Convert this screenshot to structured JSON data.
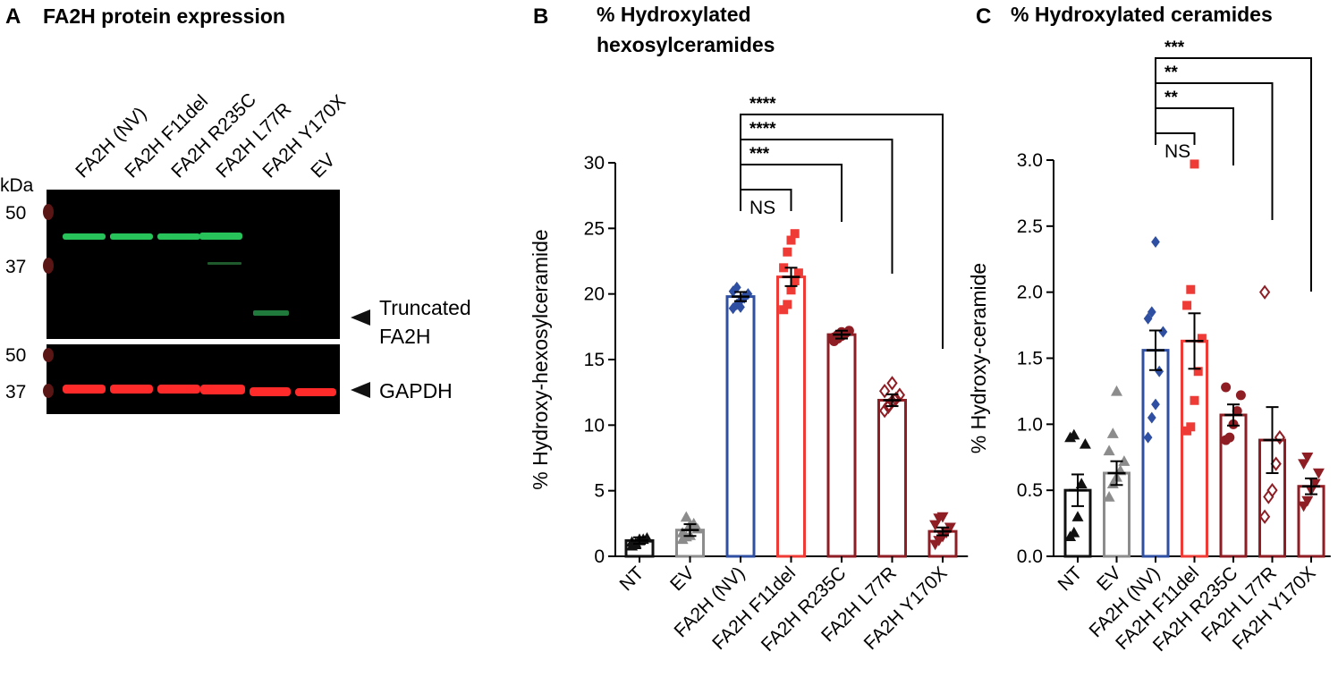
{
  "colors": {
    "NT": "#111111",
    "EV": "#8c8c8c",
    "FA2H (NV)": "#2f4fa2",
    "FA2H F11del": "#ef3b36",
    "FA2H R235C": "#8e1d24",
    "FA2H L77R": "#8e1d24",
    "FA2H Y170X": "#8e1d24",
    "blot_green": "#27c25a",
    "blot_red": "#ff2a2a",
    "ladder": "#6a1a1a"
  },
  "panel_a": {
    "letter": "A",
    "title": "FA2H protein expression",
    "kda_label": "kDa",
    "lanes": [
      "FA2H (NV)",
      "FA2H F11del",
      "FA2H R235C",
      "FA2H L77R",
      "FA2H Y170X",
      "EV"
    ],
    "upper_markers": [
      "50",
      "37"
    ],
    "lower_markers": [
      "50",
      "37"
    ],
    "annotation_truncated": [
      "Truncated",
      "FA2H"
    ],
    "annotation_gapdh": "GAPDH"
  },
  "panel_b": {
    "letter": "B",
    "title_lines": [
      "% Hydroxylated",
      "hexosylceramides"
    ]
  },
  "panel_c": {
    "letter": "C",
    "title": "% Hydroxylated ceramides"
  },
  "chart_data": [
    {
      "type": "bar",
      "panel": "B",
      "title": "% Hydroxylated hexosylceramides",
      "xlabel": "",
      "ylabel": "% Hydroxy-hexosylceramide",
      "ylim": [
        0,
        30
      ],
      "yticks": [
        "0",
        "5",
        "10",
        "15",
        "20",
        "25",
        "30"
      ],
      "categories": [
        "NT",
        "EV",
        "FA2H (NV)",
        "FA2H F11del",
        "FA2H R235C",
        "FA2H L77R",
        "FA2H Y170X"
      ],
      "values": [
        1.2,
        2.0,
        19.8,
        21.3,
        16.9,
        11.9,
        1.9
      ],
      "sem": [
        0.25,
        0.45,
        0.35,
        0.7,
        0.3,
        0.45,
        0.3
      ],
      "points": [
        [
          0.8,
          1.0,
          1.2,
          1.3,
          1.4,
          1.1,
          0.9,
          1.3
        ],
        [
          1.3,
          1.5,
          2.4,
          2.5,
          2.1,
          1.8,
          3.0,
          1.6
        ],
        [
          18.9,
          19.2,
          19.5,
          19.8,
          20.0,
          20.2,
          20.5,
          19.0,
          19.7
        ],
        [
          18.8,
          19.2,
          20.3,
          21.0,
          21.6,
          22.0,
          23.2,
          24.1,
          24.6
        ],
        [
          16.4,
          16.6,
          16.8,
          17.0,
          17.2,
          16.7,
          16.9,
          17.1
        ],
        [
          11.1,
          11.4,
          11.8,
          12.0,
          12.3,
          12.6,
          11.5,
          13.2
        ],
        [
          0.9,
          1.2,
          1.5,
          1.8,
          2.2,
          2.4,
          2.9,
          3.0
        ]
      ],
      "markers": [
        "triangle",
        "triangle",
        "diamond",
        "square",
        "circle",
        "open-diamond",
        "inverted-triangle"
      ],
      "comparisons": [
        {
          "from": "FA2H (NV)",
          "to": "FA2H Y170X",
          "label": "****"
        },
        {
          "from": "FA2H (NV)",
          "to": "FA2H L77R",
          "label": "****"
        },
        {
          "from": "FA2H (NV)",
          "to": "FA2H R235C",
          "label": "***"
        },
        {
          "from": "FA2H (NV)",
          "to": "FA2H F11del",
          "label": "NS"
        }
      ]
    },
    {
      "type": "bar",
      "panel": "C",
      "title": "% Hydroxylated ceramides",
      "xlabel": "",
      "ylabel": "% Hydroxy-ceramide",
      "ylim": [
        0,
        3.0
      ],
      "yticks": [
        "0.0",
        "0.5",
        "1.0",
        "1.5",
        "2.0",
        "2.5",
        "3.0"
      ],
      "categories": [
        "NT",
        "EV",
        "FA2H (NV)",
        "FA2H F11del",
        "FA2H R235C",
        "FA2H L77R",
        "FA2H Y170X"
      ],
      "values": [
        0.5,
        0.63,
        1.56,
        1.63,
        1.07,
        0.88,
        0.53
      ],
      "sem": [
        0.12,
        0.09,
        0.15,
        0.21,
        0.08,
        0.25,
        0.06
      ],
      "points": [
        [
          0.15,
          0.18,
          0.3,
          0.55,
          0.85,
          0.9,
          0.92
        ],
        [
          0.45,
          0.55,
          0.6,
          0.65,
          0.72,
          0.8,
          0.93,
          1.25
        ],
        [
          0.9,
          1.05,
          1.15,
          1.4,
          1.7,
          1.8,
          1.85,
          2.38
        ],
        [
          0.95,
          0.98,
          1.18,
          1.4,
          1.65,
          1.9,
          2.02,
          2.97
        ],
        [
          0.88,
          0.9,
          1.0,
          1.1,
          1.22,
          1.28
        ],
        [
          0.3,
          0.45,
          0.5,
          0.7,
          0.9,
          2.0
        ],
        [
          0.38,
          0.42,
          0.5,
          0.55,
          0.63,
          0.7,
          0.75
        ]
      ],
      "markers": [
        "triangle",
        "triangle",
        "diamond",
        "square",
        "circle",
        "open-diamond",
        "inverted-triangle"
      ],
      "comparisons": [
        {
          "from": "FA2H (NV)",
          "to": "FA2H Y170X",
          "label": "***"
        },
        {
          "from": "FA2H (NV)",
          "to": "FA2H L77R",
          "label": "**"
        },
        {
          "from": "FA2H (NV)",
          "to": "FA2H R235C",
          "label": "**"
        },
        {
          "from": "FA2H (NV)",
          "to": "FA2H F11del",
          "label": "NS"
        }
      ]
    }
  ]
}
